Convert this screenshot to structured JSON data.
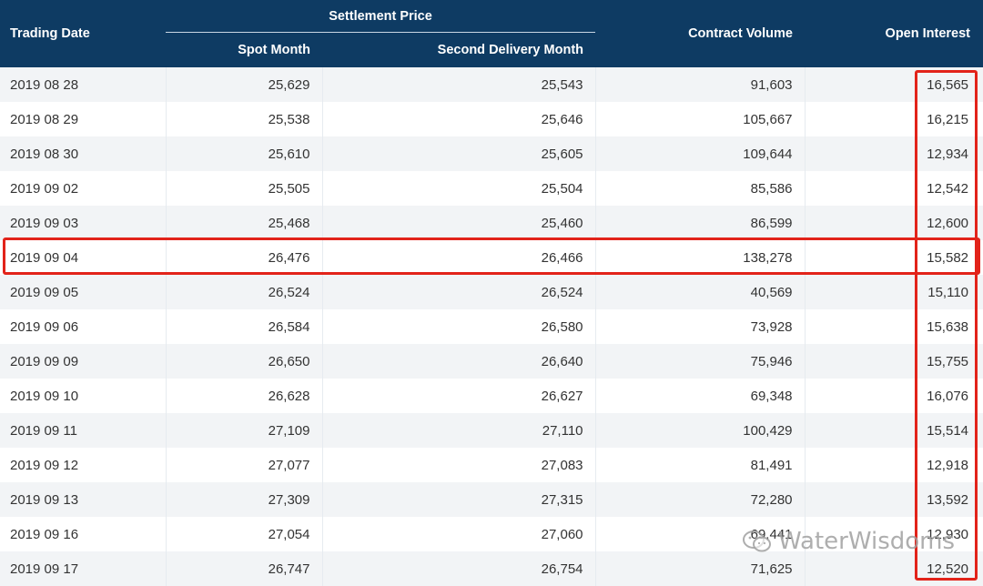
{
  "header": {
    "trading_date": "Trading Date",
    "settlement_price": "Settlement Price",
    "spot_month": "Spot Month",
    "second_delivery_month": "Second Delivery Month",
    "contract_volume": "Contract Volume",
    "open_interest": "Open Interest"
  },
  "rows": [
    {
      "date": "2019 08 28",
      "spot": "25,629",
      "second": "25,543",
      "volume": "91,603",
      "oi": "16,565"
    },
    {
      "date": "2019 08 29",
      "spot": "25,538",
      "second": "25,646",
      "volume": "105,667",
      "oi": "16,215"
    },
    {
      "date": "2019 08 30",
      "spot": "25,610",
      "second": "25,605",
      "volume": "109,644",
      "oi": "12,934"
    },
    {
      "date": "2019 09 02",
      "spot": "25,505",
      "second": "25,504",
      "volume": "85,586",
      "oi": "12,542"
    },
    {
      "date": "2019 09 03",
      "spot": "25,468",
      "second": "25,460",
      "volume": "86,599",
      "oi": "12,600"
    },
    {
      "date": "2019 09 04",
      "spot": "26,476",
      "second": "26,466",
      "volume": "138,278",
      "oi": "15,582"
    },
    {
      "date": "2019 09 05",
      "spot": "26,524",
      "second": "26,524",
      "volume": "40,569",
      "oi": "15,110"
    },
    {
      "date": "2019 09 06",
      "spot": "26,584",
      "second": "26,580",
      "volume": "73,928",
      "oi": "15,638"
    },
    {
      "date": "2019 09 09",
      "spot": "26,650",
      "second": "26,640",
      "volume": "75,946",
      "oi": "15,755"
    },
    {
      "date": "2019 09 10",
      "spot": "26,628",
      "second": "26,627",
      "volume": "69,348",
      "oi": "16,076"
    },
    {
      "date": "2019 09 11",
      "spot": "27,109",
      "second": "27,110",
      "volume": "100,429",
      "oi": "15,514"
    },
    {
      "date": "2019 09 12",
      "spot": "27,077",
      "second": "27,083",
      "volume": "81,491",
      "oi": "12,918"
    },
    {
      "date": "2019 09 13",
      "spot": "27,309",
      "second": "27,315",
      "volume": "72,280",
      "oi": "13,592"
    },
    {
      "date": "2019 09 16",
      "spot": "27,054",
      "second": "27,060",
      "volume": "69,441",
      "oi": "12,930"
    },
    {
      "date": "2019 09 17",
      "spot": "26,747",
      "second": "26,754",
      "volume": "71,625",
      "oi": "12,520"
    }
  ],
  "watermark": {
    "text": "WaterWisdoms",
    "icon": "wechat-icon"
  },
  "colors": {
    "header_bg": "#0e3b63",
    "highlight": "#e2231a",
    "stripe": "#f2f4f6"
  }
}
